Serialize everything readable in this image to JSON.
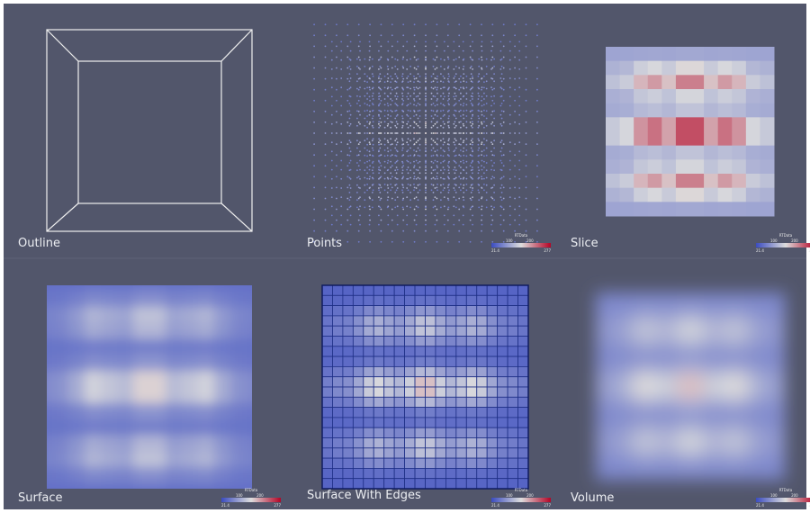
{
  "views": [
    {
      "label": "Outline"
    },
    {
      "label": "Points",
      "legend": {
        "title": "RTData",
        "ticks": [
          "100",
          "200"
        ],
        "min": "21.4",
        "max": "277"
      }
    },
    {
      "label": "Slice",
      "legend": {
        "title": "RTData",
        "ticks": [
          "100",
          "200"
        ],
        "min": "21.4",
        "max": "277"
      }
    },
    {
      "label": "Surface",
      "legend": {
        "title": "RTData",
        "ticks": [
          "100",
          "200"
        ],
        "min": "21.4",
        "max": "277"
      }
    },
    {
      "label": "Surface With Edges",
      "legend": {
        "title": "RTData",
        "ticks": [
          "100",
          "200"
        ],
        "min": "21.4",
        "max": "277"
      }
    },
    {
      "label": "Volume",
      "legend": {
        "title": "RTData",
        "ticks": [
          "100",
          "200"
        ],
        "min": "21.4",
        "max": "277"
      }
    }
  ]
}
